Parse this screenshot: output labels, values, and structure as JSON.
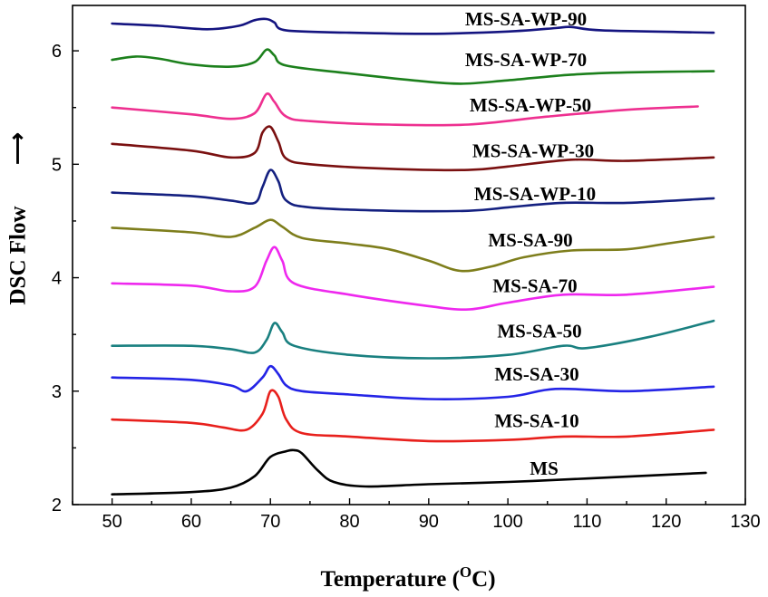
{
  "chart_data": {
    "type": "line",
    "xlabel": "Temperature (",
    "xlabel_sup": "O",
    "xlabel_unit": "C)",
    "ylabel": "DSC Flow",
    "ylabel_arrow": "⟶",
    "xlim": [
      45,
      130
    ],
    "ylim": [
      2,
      6.4
    ],
    "x_ticks": [
      50,
      60,
      70,
      80,
      90,
      100,
      110,
      120,
      130
    ],
    "y_ticks": [
      2,
      3,
      4,
      5,
      6
    ],
    "series": [
      {
        "name": "MS",
        "color": "#000000",
        "label": "MS",
        "points": [
          [
            50,
            2.09
          ],
          [
            60,
            2.11
          ],
          [
            65,
            2.15
          ],
          [
            68,
            2.25
          ],
          [
            70,
            2.42
          ],
          [
            72,
            2.47
          ],
          [
            73,
            2.48
          ],
          [
            74,
            2.45
          ],
          [
            76,
            2.3
          ],
          [
            78,
            2.2
          ],
          [
            82,
            2.16
          ],
          [
            90,
            2.18
          ],
          [
            100,
            2.2
          ],
          [
            110,
            2.23
          ],
          [
            125,
            2.28
          ]
        ]
      },
      {
        "name": "MS-SA-10",
        "color": "#e8201c",
        "label": "MS-SA-10",
        "points": [
          [
            50,
            2.75
          ],
          [
            60,
            2.72
          ],
          [
            64,
            2.68
          ],
          [
            67,
            2.66
          ],
          [
            69,
            2.8
          ],
          [
            70,
            3.0
          ],
          [
            71,
            2.95
          ],
          [
            72,
            2.75
          ],
          [
            74,
            2.63
          ],
          [
            80,
            2.6
          ],
          [
            90,
            2.56
          ],
          [
            100,
            2.57
          ],
          [
            107,
            2.6
          ],
          [
            115,
            2.6
          ],
          [
            126,
            2.66
          ]
        ]
      },
      {
        "name": "MS-SA-30",
        "color": "#2424e6",
        "label": "MS-SA-30",
        "points": [
          [
            50,
            3.12
          ],
          [
            60,
            3.1
          ],
          [
            65,
            3.05
          ],
          [
            67,
            3.0
          ],
          [
            69,
            3.12
          ],
          [
            70,
            3.22
          ],
          [
            71,
            3.15
          ],
          [
            72,
            3.05
          ],
          [
            74,
            3.0
          ],
          [
            80,
            2.97
          ],
          [
            90,
            2.93
          ],
          [
            100,
            2.95
          ],
          [
            106,
            3.02
          ],
          [
            115,
            3.0
          ],
          [
            126,
            3.04
          ]
        ]
      },
      {
        "name": "MS-SA-50",
        "color": "#1a8080",
        "label": "MS-SA-50",
        "points": [
          [
            50,
            3.4
          ],
          [
            60,
            3.4
          ],
          [
            65,
            3.37
          ],
          [
            68,
            3.34
          ],
          [
            69.5,
            3.45
          ],
          [
            70.5,
            3.6
          ],
          [
            71.5,
            3.52
          ],
          [
            73,
            3.4
          ],
          [
            80,
            3.32
          ],
          [
            90,
            3.29
          ],
          [
            100,
            3.32
          ],
          [
            107,
            3.4
          ],
          [
            110,
            3.38
          ],
          [
            118,
            3.48
          ],
          [
            126,
            3.62
          ]
        ]
      },
      {
        "name": "MS-SA-70",
        "color": "#ee28ee",
        "label": "MS-SA-70",
        "points": [
          [
            50,
            3.95
          ],
          [
            60,
            3.93
          ],
          [
            65,
            3.88
          ],
          [
            68,
            3.92
          ],
          [
            69.5,
            4.15
          ],
          [
            70.5,
            4.27
          ],
          [
            71.5,
            4.15
          ],
          [
            73,
            3.95
          ],
          [
            80,
            3.85
          ],
          [
            90,
            3.75
          ],
          [
            95,
            3.72
          ],
          [
            100,
            3.78
          ],
          [
            107,
            3.85
          ],
          [
            115,
            3.85
          ],
          [
            126,
            3.92
          ]
        ]
      },
      {
        "name": "MS-SA-90",
        "color": "#7e7e1c",
        "label": "MS-SA-90",
        "points": [
          [
            50,
            4.44
          ],
          [
            60,
            4.4
          ],
          [
            65,
            4.36
          ],
          [
            68,
            4.44
          ],
          [
            70,
            4.51
          ],
          [
            71.5,
            4.45
          ],
          [
            74,
            4.35
          ],
          [
            80,
            4.3
          ],
          [
            85,
            4.25
          ],
          [
            90,
            4.15
          ],
          [
            94,
            4.06
          ],
          [
            98,
            4.1
          ],
          [
            102,
            4.18
          ],
          [
            108,
            4.24
          ],
          [
            115,
            4.25
          ],
          [
            120,
            4.3
          ],
          [
            126,
            4.36
          ]
        ]
      },
      {
        "name": "MS-SA-WP-10",
        "color": "#142080",
        "label": "MS-SA-WP-10",
        "points": [
          [
            50,
            4.75
          ],
          [
            60,
            4.72
          ],
          [
            65,
            4.68
          ],
          [
            68,
            4.66
          ],
          [
            69,
            4.8
          ],
          [
            70,
            4.95
          ],
          [
            71,
            4.85
          ],
          [
            72,
            4.68
          ],
          [
            75,
            4.62
          ],
          [
            85,
            4.59
          ],
          [
            95,
            4.59
          ],
          [
            100,
            4.62
          ],
          [
            107,
            4.66
          ],
          [
            115,
            4.66
          ],
          [
            126,
            4.7
          ]
        ]
      },
      {
        "name": "MS-SA-WP-30",
        "color": "#7a1010",
        "label": "MS-SA-WP-30",
        "points": [
          [
            50,
            5.18
          ],
          [
            60,
            5.12
          ],
          [
            65,
            5.06
          ],
          [
            68,
            5.1
          ],
          [
            69,
            5.28
          ],
          [
            70,
            5.33
          ],
          [
            71,
            5.2
          ],
          [
            72,
            5.05
          ],
          [
            75,
            5.0
          ],
          [
            85,
            4.96
          ],
          [
            95,
            4.95
          ],
          [
            100,
            4.98
          ],
          [
            108,
            5.04
          ],
          [
            115,
            5.03
          ],
          [
            126,
            5.06
          ]
        ]
      },
      {
        "name": "MS-SA-WP-50",
        "color": "#ee3090",
        "label": "MS-SA-WP-50",
        "points": [
          [
            50,
            5.5
          ],
          [
            60,
            5.44
          ],
          [
            65,
            5.4
          ],
          [
            68,
            5.45
          ],
          [
            69.5,
            5.62
          ],
          [
            70.5,
            5.55
          ],
          [
            72,
            5.42
          ],
          [
            75,
            5.38
          ],
          [
            85,
            5.35
          ],
          [
            95,
            5.35
          ],
          [
            105,
            5.42
          ],
          [
            115,
            5.48
          ],
          [
            124,
            5.51
          ]
        ]
      },
      {
        "name": "MS-SA-WP-70",
        "color": "#1c801c",
        "label": "MS-SA-WP-70",
        "points": [
          [
            50,
            5.92
          ],
          [
            53,
            5.95
          ],
          [
            56,
            5.93
          ],
          [
            60,
            5.88
          ],
          [
            65,
            5.86
          ],
          [
            68,
            5.9
          ],
          [
            69.5,
            6.01
          ],
          [
            70.5,
            5.96
          ],
          [
            72,
            5.87
          ],
          [
            80,
            5.8
          ],
          [
            88,
            5.74
          ],
          [
            94,
            5.71
          ],
          [
            100,
            5.74
          ],
          [
            108,
            5.79
          ],
          [
            115,
            5.81
          ],
          [
            126,
            5.82
          ]
        ]
      },
      {
        "name": "MS-SA-WP-90",
        "color": "#141480",
        "label": "MS-SA-WP-90",
        "points": [
          [
            50,
            6.24
          ],
          [
            56,
            6.22
          ],
          [
            62,
            6.19
          ],
          [
            66,
            6.22
          ],
          [
            68,
            6.27
          ],
          [
            69.5,
            6.28
          ],
          [
            70.5,
            6.25
          ],
          [
            72,
            6.18
          ],
          [
            80,
            6.16
          ],
          [
            90,
            6.15
          ],
          [
            100,
            6.17
          ],
          [
            106,
            6.2
          ],
          [
            108,
            6.21
          ],
          [
            112,
            6.18
          ],
          [
            126,
            6.16
          ]
        ]
      }
    ]
  }
}
